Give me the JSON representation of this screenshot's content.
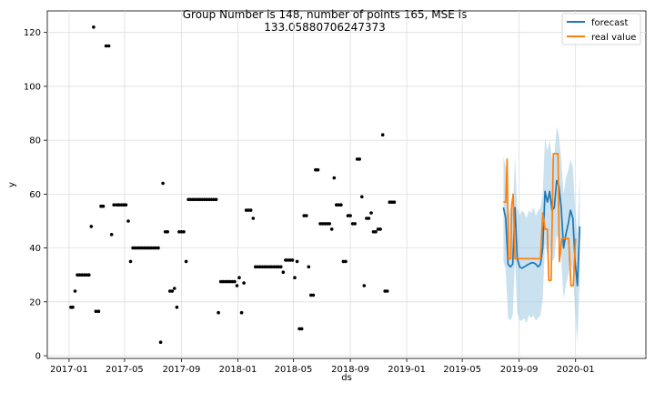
{
  "chart_data": {
    "type": "line",
    "title_lines": [
      "Group Number is 148, number of points 165, MSE is",
      "133.05880706247373"
    ],
    "xlabel": "ds",
    "ylabel": "y",
    "xlim": [
      "2016-11-15",
      "2020-06-01"
    ],
    "ylim": [
      -1,
      128
    ],
    "grid": true,
    "legend_position": "top-right",
    "x_ticks": [
      {
        "date": "2017-01-01",
        "label": "2017-01"
      },
      {
        "date": "2017-05-01",
        "label": "2017-05"
      },
      {
        "date": "2017-09-01",
        "label": "2017-09"
      },
      {
        "date": "2018-01-01",
        "label": "2018-01"
      },
      {
        "date": "2018-05-01",
        "label": "2018-05"
      },
      {
        "date": "2018-09-01",
        "label": "2018-09"
      },
      {
        "date": "2019-01-01",
        "label": "2019-01"
      },
      {
        "date": "2019-05-01",
        "label": "2019-05"
      },
      {
        "date": "2019-09-01",
        "label": "2019-09"
      },
      {
        "date": "2020-01-01",
        "label": "2020-01"
      }
    ],
    "y_ticks": [
      0,
      20,
      40,
      60,
      80,
      100,
      120
    ],
    "colors": {
      "observed": "#000000",
      "forecast": "#1f77b4",
      "real": "#ff7f0e",
      "band": "#9ecae1"
    },
    "observed": [
      [
        "2017-01-05",
        18
      ],
      [
        "2017-01-09",
        18
      ],
      [
        "2017-01-14",
        24
      ],
      [
        "2017-01-19",
        30
      ],
      [
        "2017-01-24",
        30
      ],
      [
        "2017-01-29",
        30
      ],
      [
        "2017-02-03",
        30
      ],
      [
        "2017-02-08",
        30
      ],
      [
        "2017-02-13",
        30
      ],
      [
        "2017-02-18",
        48
      ],
      [
        "2017-02-23",
        122
      ],
      [
        "2017-02-28",
        16.5
      ],
      [
        "2017-03-06",
        16.5
      ],
      [
        "2017-03-11",
        55.5
      ],
      [
        "2017-03-16",
        55.5
      ],
      [
        "2017-03-22",
        115
      ],
      [
        "2017-03-28",
        115
      ],
      [
        "2017-04-03",
        45
      ],
      [
        "2017-04-08",
        56
      ],
      [
        "2017-04-14",
        56
      ],
      [
        "2017-04-19",
        56
      ],
      [
        "2017-04-24",
        56
      ],
      [
        "2017-04-29",
        56
      ],
      [
        "2017-05-04",
        56
      ],
      [
        "2017-05-09",
        50
      ],
      [
        "2017-05-14",
        35
      ],
      [
        "2017-05-19",
        40
      ],
      [
        "2017-05-24",
        40
      ],
      [
        "2017-05-29",
        40
      ],
      [
        "2017-06-03",
        40
      ],
      [
        "2017-06-08",
        40
      ],
      [
        "2017-06-13",
        40
      ],
      [
        "2017-06-18",
        40
      ],
      [
        "2017-06-23",
        40
      ],
      [
        "2017-06-28",
        40
      ],
      [
        "2017-07-03",
        40
      ],
      [
        "2017-07-08",
        40
      ],
      [
        "2017-07-13",
        40
      ],
      [
        "2017-07-18",
        5
      ],
      [
        "2017-07-23",
        64
      ],
      [
        "2017-07-28",
        46
      ],
      [
        "2017-08-02",
        46
      ],
      [
        "2017-08-07",
        24
      ],
      [
        "2017-08-12",
        24
      ],
      [
        "2017-08-17",
        25
      ],
      [
        "2017-08-22",
        18
      ],
      [
        "2017-08-27",
        46
      ],
      [
        "2017-09-01",
        46
      ],
      [
        "2017-09-06",
        46
      ],
      [
        "2017-09-11",
        35
      ],
      [
        "2017-09-16",
        58
      ],
      [
        "2017-09-21",
        58
      ],
      [
        "2017-09-26",
        58
      ],
      [
        "2017-10-01",
        58
      ],
      [
        "2017-10-06",
        58
      ],
      [
        "2017-10-11",
        58
      ],
      [
        "2017-10-16",
        58
      ],
      [
        "2017-10-21",
        58
      ],
      [
        "2017-10-26",
        58
      ],
      [
        "2017-10-31",
        58
      ],
      [
        "2017-11-05",
        58
      ],
      [
        "2017-11-10",
        58
      ],
      [
        "2017-11-15",
        58
      ],
      [
        "2017-11-20",
        16
      ],
      [
        "2017-11-25",
        27.5
      ],
      [
        "2017-11-30",
        27.5
      ],
      [
        "2017-12-05",
        27.5
      ],
      [
        "2017-12-10",
        27.5
      ],
      [
        "2017-12-15",
        27.5
      ],
      [
        "2017-12-20",
        27.5
      ],
      [
        "2017-12-25",
        27.5
      ],
      [
        "2017-12-30",
        26
      ],
      [
        "2018-01-04",
        29
      ],
      [
        "2018-01-09",
        16
      ],
      [
        "2018-01-14",
        27
      ],
      [
        "2018-01-19",
        54
      ],
      [
        "2018-01-24",
        54
      ],
      [
        "2018-01-29",
        54
      ],
      [
        "2018-02-03",
        51
      ],
      [
        "2018-02-08",
        33
      ],
      [
        "2018-02-13",
        33
      ],
      [
        "2018-02-18",
        33
      ],
      [
        "2018-02-23",
        33
      ],
      [
        "2018-02-28",
        33
      ],
      [
        "2018-03-05",
        33
      ],
      [
        "2018-03-10",
        33
      ],
      [
        "2018-03-15",
        33
      ],
      [
        "2018-03-20",
        33
      ],
      [
        "2018-03-25",
        33
      ],
      [
        "2018-03-30",
        33
      ],
      [
        "2018-04-04",
        33
      ],
      [
        "2018-04-09",
        31
      ],
      [
        "2018-04-14",
        35.5
      ],
      [
        "2018-04-19",
        35.5
      ],
      [
        "2018-04-24",
        35.5
      ],
      [
        "2018-04-29",
        35.5
      ],
      [
        "2018-05-04",
        29
      ],
      [
        "2018-05-09",
        35
      ],
      [
        "2018-05-14",
        10
      ],
      [
        "2018-05-19",
        10
      ],
      [
        "2018-05-24",
        52
      ],
      [
        "2018-05-29",
        52
      ],
      [
        "2018-06-03",
        33
      ],
      [
        "2018-06-08",
        22.5
      ],
      [
        "2018-06-13",
        22.5
      ],
      [
        "2018-06-18",
        69
      ],
      [
        "2018-06-23",
        69
      ],
      [
        "2018-06-28",
        49
      ],
      [
        "2018-07-03",
        49
      ],
      [
        "2018-07-08",
        49
      ],
      [
        "2018-07-13",
        49
      ],
      [
        "2018-07-18",
        49
      ],
      [
        "2018-07-23",
        47
      ],
      [
        "2018-07-28",
        66
      ],
      [
        "2018-08-02",
        56
      ],
      [
        "2018-08-07",
        56
      ],
      [
        "2018-08-12",
        56
      ],
      [
        "2018-08-17",
        35
      ],
      [
        "2018-08-22",
        35
      ],
      [
        "2018-08-27",
        52
      ],
      [
        "2018-09-01",
        52
      ],
      [
        "2018-09-06",
        49
      ],
      [
        "2018-09-11",
        49
      ],
      [
        "2018-09-16",
        73
      ],
      [
        "2018-09-21",
        73
      ],
      [
        "2018-09-26",
        59
      ],
      [
        "2018-10-01",
        26
      ],
      [
        "2018-10-06",
        51
      ],
      [
        "2018-10-11",
        51
      ],
      [
        "2018-10-16",
        53
      ],
      [
        "2018-10-21",
        46
      ],
      [
        "2018-10-26",
        46
      ],
      [
        "2018-10-31",
        47
      ],
      [
        "2018-11-05",
        47
      ],
      [
        "2018-11-10",
        82
      ],
      [
        "2018-11-15",
        24
      ],
      [
        "2018-11-20",
        24
      ],
      [
        "2018-11-25",
        57
      ],
      [
        "2018-11-30",
        57
      ],
      [
        "2018-12-05",
        57
      ]
    ],
    "forecast": [
      [
        "2019-07-29",
        55
      ],
      [
        "2019-08-03",
        51
      ],
      [
        "2019-08-08",
        34
      ],
      [
        "2019-08-13",
        33
      ],
      [
        "2019-08-18",
        34
      ],
      [
        "2019-08-23",
        55
      ],
      [
        "2019-08-28",
        36
      ],
      [
        "2019-09-02",
        33
      ],
      [
        "2019-09-07",
        32.5
      ],
      [
        "2019-09-12",
        33
      ],
      [
        "2019-09-17",
        33.5
      ],
      [
        "2019-09-22",
        34
      ],
      [
        "2019-09-27",
        34.5
      ],
      [
        "2019-10-02",
        34.5
      ],
      [
        "2019-10-07",
        34
      ],
      [
        "2019-10-12",
        33
      ],
      [
        "2019-10-17",
        34
      ],
      [
        "2019-10-22",
        40
      ],
      [
        "2019-10-27",
        61
      ],
      [
        "2019-11-01",
        57
      ],
      [
        "2019-11-06",
        61
      ],
      [
        "2019-11-11",
        54
      ],
      [
        "2019-11-16",
        55
      ],
      [
        "2019-11-21",
        65
      ],
      [
        "2019-11-26",
        63
      ],
      [
        "2019-12-01",
        55
      ],
      [
        "2019-12-06",
        40
      ],
      [
        "2019-12-11",
        45
      ],
      [
        "2019-12-16",
        49
      ],
      [
        "2019-12-21",
        54
      ],
      [
        "2019-12-26",
        51
      ],
      [
        "2019-12-31",
        35
      ],
      [
        "2020-01-05",
        26
      ],
      [
        "2020-01-10",
        48
      ]
    ],
    "band_upper": [
      [
        "2019-07-29",
        74
      ],
      [
        "2019-08-03",
        70
      ],
      [
        "2019-08-08",
        52
      ],
      [
        "2019-08-13",
        55
      ],
      [
        "2019-08-18",
        53
      ],
      [
        "2019-08-23",
        74
      ],
      [
        "2019-08-28",
        55
      ],
      [
        "2019-09-02",
        52
      ],
      [
        "2019-09-07",
        54
      ],
      [
        "2019-09-12",
        53
      ],
      [
        "2019-09-17",
        51
      ],
      [
        "2019-09-22",
        54
      ],
      [
        "2019-09-27",
        53
      ],
      [
        "2019-10-02",
        55
      ],
      [
        "2019-10-07",
        52
      ],
      [
        "2019-10-12",
        54
      ],
      [
        "2019-10-17",
        55
      ],
      [
        "2019-10-22",
        60
      ],
      [
        "2019-10-27",
        81
      ],
      [
        "2019-11-01",
        76
      ],
      [
        "2019-11-06",
        80
      ],
      [
        "2019-11-11",
        73
      ],
      [
        "2019-11-16",
        74
      ],
      [
        "2019-11-21",
        85
      ],
      [
        "2019-11-26",
        82
      ],
      [
        "2019-12-01",
        73
      ],
      [
        "2019-12-06",
        60
      ],
      [
        "2019-12-11",
        66
      ],
      [
        "2019-12-16",
        69
      ],
      [
        "2019-12-21",
        73
      ],
      [
        "2019-12-26",
        70
      ],
      [
        "2019-12-31",
        55
      ],
      [
        "2020-01-05",
        45
      ],
      [
        "2020-01-10",
        67
      ]
    ],
    "band_lower": [
      [
        "2019-07-29",
        35
      ],
      [
        "2019-08-03",
        32
      ],
      [
        "2019-08-08",
        14
      ],
      [
        "2019-08-13",
        13
      ],
      [
        "2019-08-18",
        15
      ],
      [
        "2019-08-23",
        36
      ],
      [
        "2019-08-28",
        16
      ],
      [
        "2019-09-02",
        13
      ],
      [
        "2019-09-07",
        13
      ],
      [
        "2019-09-12",
        14
      ],
      [
        "2019-09-17",
        12
      ],
      [
        "2019-09-22",
        15
      ],
      [
        "2019-09-27",
        14
      ],
      [
        "2019-10-02",
        15
      ],
      [
        "2019-10-07",
        13
      ],
      [
        "2019-10-12",
        14
      ],
      [
        "2019-10-17",
        15
      ],
      [
        "2019-10-22",
        21
      ],
      [
        "2019-10-27",
        42
      ],
      [
        "2019-11-01",
        37
      ],
      [
        "2019-11-06",
        41
      ],
      [
        "2019-11-11",
        35
      ],
      [
        "2019-11-16",
        36
      ],
      [
        "2019-11-21",
        45
      ],
      [
        "2019-11-26",
        43
      ],
      [
        "2019-12-01",
        36
      ],
      [
        "2019-12-06",
        21
      ],
      [
        "2019-12-11",
        26
      ],
      [
        "2019-12-16",
        30
      ],
      [
        "2019-12-21",
        34
      ],
      [
        "2019-12-26",
        32
      ],
      [
        "2019-12-31",
        16
      ],
      [
        "2020-01-05",
        5
      ],
      [
        "2020-01-10",
        28
      ]
    ],
    "real": [
      [
        "2019-07-29",
        57
      ],
      [
        "2019-08-03",
        57
      ],
      [
        "2019-08-06",
        73
      ],
      [
        "2019-08-09",
        36
      ],
      [
        "2019-08-14",
        36
      ],
      [
        "2019-08-16",
        56
      ],
      [
        "2019-08-19",
        60
      ],
      [
        "2019-08-23",
        36
      ],
      [
        "2019-08-28",
        36
      ],
      [
        "2019-09-02",
        36
      ],
      [
        "2019-09-07",
        36
      ],
      [
        "2019-09-12",
        36
      ],
      [
        "2019-09-17",
        36
      ],
      [
        "2019-09-22",
        36
      ],
      [
        "2019-09-27",
        36
      ],
      [
        "2019-10-02",
        36
      ],
      [
        "2019-10-07",
        36
      ],
      [
        "2019-10-12",
        36
      ],
      [
        "2019-10-17",
        36
      ],
      [
        "2019-10-22",
        53
      ],
      [
        "2019-10-27",
        47
      ],
      [
        "2019-11-01",
        47
      ],
      [
        "2019-11-04",
        28
      ],
      [
        "2019-11-09",
        28
      ],
      [
        "2019-11-14",
        75
      ],
      [
        "2019-11-19",
        75
      ],
      [
        "2019-11-24",
        75
      ],
      [
        "2019-11-27",
        35
      ],
      [
        "2019-12-02",
        43.5
      ],
      [
        "2019-12-07",
        43.5
      ],
      [
        "2019-12-12",
        43.5
      ],
      [
        "2019-12-17",
        43.5
      ],
      [
        "2019-12-22",
        26
      ],
      [
        "2019-12-27",
        26
      ],
      [
        "2020-01-01",
        43.5
      ]
    ],
    "legend": [
      {
        "key": "forecast",
        "label": "forecast"
      },
      {
        "key": "real",
        "label": "real value"
      }
    ]
  }
}
